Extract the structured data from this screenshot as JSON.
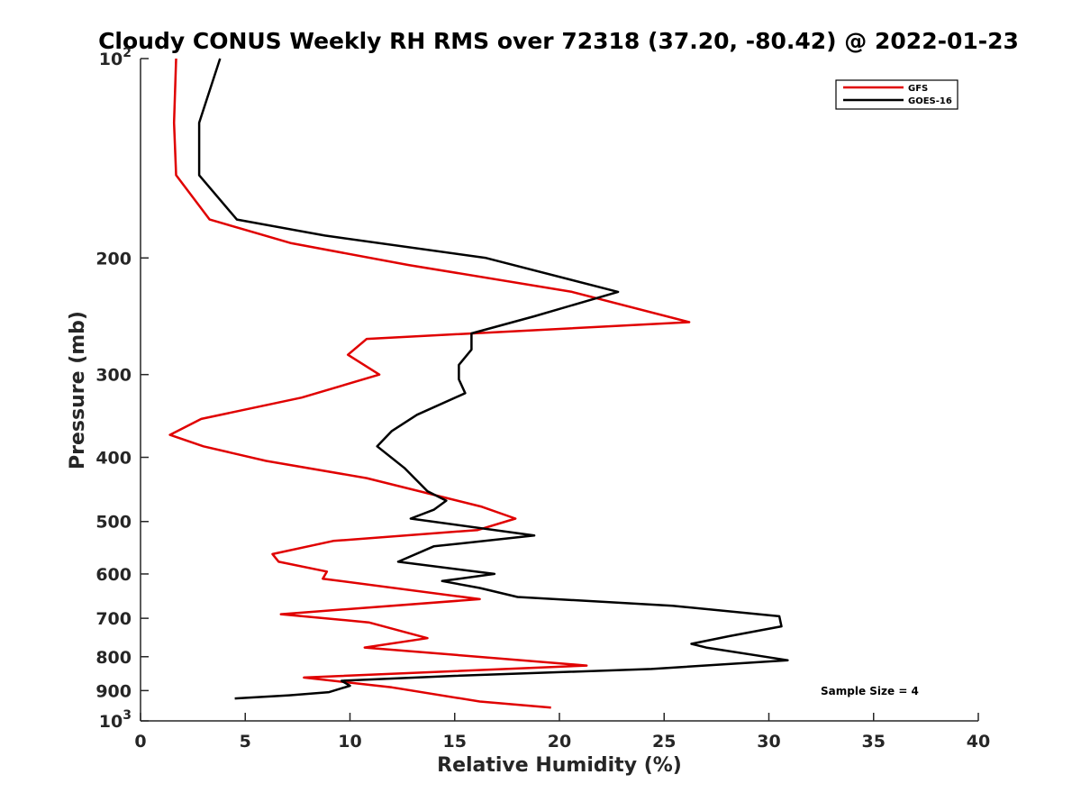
{
  "chart_data": {
    "type": "line",
    "title": "Cloudy CONUS Weekly RH RMS over 72318 (37.20, -80.42) @ 2022-01-23",
    "xlabel": "Relative Humidity (%)",
    "ylabel": "Pressure (mb)",
    "xlim": [
      0,
      40
    ],
    "ylim": [
      100,
      1000
    ],
    "yscale": "log",
    "y_reversed": true,
    "x_ticks": [
      0,
      5,
      10,
      15,
      20,
      25,
      30,
      35,
      40
    ],
    "x_tick_labels": [
      "0",
      "5",
      "10",
      "15",
      "20",
      "25",
      "30",
      "35",
      "40"
    ],
    "y_ticks": [
      100,
      200,
      300,
      400,
      500,
      600,
      700,
      800,
      900,
      1000
    ],
    "y_tick_labels": [
      {
        "base": "10",
        "exp": "2"
      },
      {
        "base": "200",
        "exp": ""
      },
      {
        "base": "300",
        "exp": ""
      },
      {
        "base": "400",
        "exp": ""
      },
      {
        "base": "500",
        "exp": ""
      },
      {
        "base": "600",
        "exp": ""
      },
      {
        "base": "700",
        "exp": ""
      },
      {
        "base": "800",
        "exp": ""
      },
      {
        "base": "900",
        "exp": ""
      },
      {
        "base": "10",
        "exp": "3"
      }
    ],
    "legend_position": "top-right",
    "series": [
      {
        "name": "GFS",
        "color": "#e00000",
        "points": [
          [
            1.7,
            100
          ],
          [
            1.6,
            125
          ],
          [
            1.7,
            150
          ],
          [
            3.3,
            175
          ],
          [
            7.2,
            190
          ],
          [
            12.8,
            205
          ],
          [
            20.6,
            225
          ],
          [
            26.2,
            250
          ],
          [
            10.8,
            265
          ],
          [
            9.9,
            280
          ],
          [
            11.4,
            300
          ],
          [
            7.7,
            325
          ],
          [
            2.9,
            350
          ],
          [
            1.4,
            370
          ],
          [
            3.0,
            385
          ],
          [
            6.0,
            405
          ],
          [
            10.8,
            430
          ],
          [
            16.3,
            475
          ],
          [
            17.9,
            495
          ],
          [
            16.1,
            515
          ],
          [
            9.2,
            535
          ],
          [
            6.3,
            560
          ],
          [
            6.6,
            575
          ],
          [
            8.9,
            595
          ],
          [
            8.7,
            610
          ],
          [
            16.2,
            655
          ],
          [
            6.7,
            690
          ],
          [
            10.9,
            710
          ],
          [
            13.7,
            750
          ],
          [
            10.7,
            775
          ],
          [
            21.3,
            825
          ],
          [
            7.8,
            860
          ],
          [
            12.0,
            890
          ],
          [
            16.2,
            935
          ],
          [
            19.6,
            955
          ]
        ]
      },
      {
        "name": "GOES-16",
        "color": "#000000",
        "points": [
          [
            3.8,
            100
          ],
          [
            2.8,
            125
          ],
          [
            2.8,
            150
          ],
          [
            4.6,
            175
          ],
          [
            8.8,
            185
          ],
          [
            16.5,
            200
          ],
          [
            22.8,
            225
          ],
          [
            18.8,
            245
          ],
          [
            15.8,
            260
          ],
          [
            15.8,
            275
          ],
          [
            15.2,
            290
          ],
          [
            15.2,
            305
          ],
          [
            15.5,
            320
          ],
          [
            13.2,
            345
          ],
          [
            12.0,
            365
          ],
          [
            11.3,
            385
          ],
          [
            12.6,
            415
          ],
          [
            13.7,
            450
          ],
          [
            14.6,
            465
          ],
          [
            14.0,
            480
          ],
          [
            12.9,
            495
          ],
          [
            18.8,
            525
          ],
          [
            14.0,
            545
          ],
          [
            12.3,
            575
          ],
          [
            16.9,
            600
          ],
          [
            14.4,
            615
          ],
          [
            16.2,
            630
          ],
          [
            18.0,
            650
          ],
          [
            25.4,
            670
          ],
          [
            30.5,
            695
          ],
          [
            30.6,
            720
          ],
          [
            28.1,
            745
          ],
          [
            26.3,
            765
          ],
          [
            27.0,
            775
          ],
          [
            30.9,
            810
          ],
          [
            24.4,
            835
          ],
          [
            15.0,
            855
          ],
          [
            9.6,
            870
          ],
          [
            10.0,
            885
          ],
          [
            9.0,
            905
          ],
          [
            7.1,
            915
          ],
          [
            4.5,
            925
          ]
        ]
      }
    ],
    "annotation": "Sample Size = 4"
  }
}
